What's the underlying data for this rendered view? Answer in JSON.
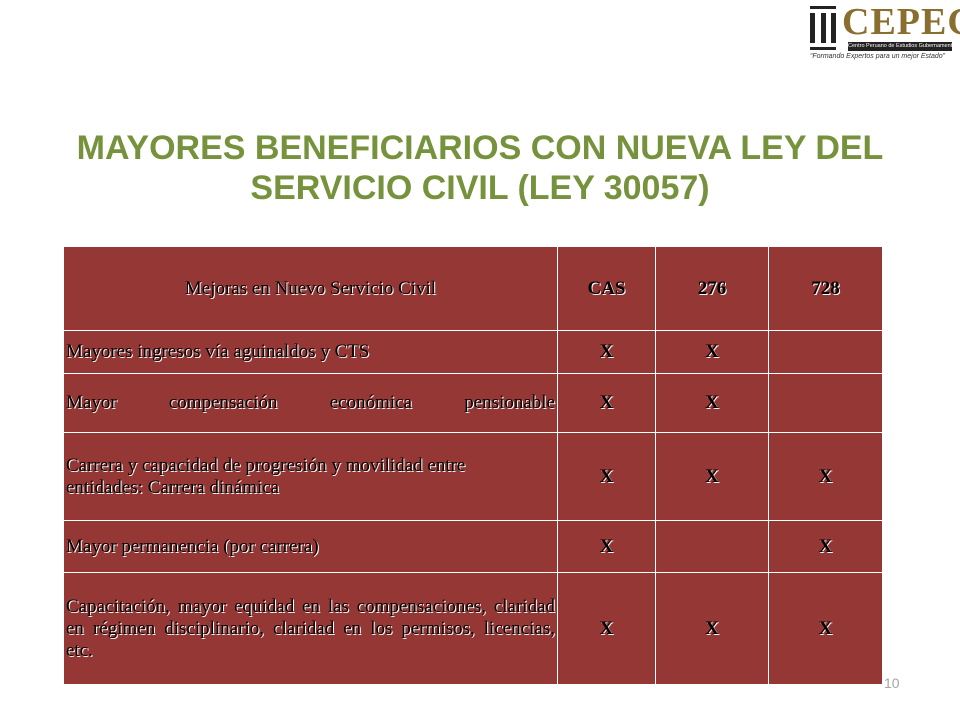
{
  "logo": {
    "name": "CEPEG",
    "subtitle": "Centro Peruano de Estudios Gubernamentales",
    "tagline": "“Formando Expertos para un mejor Estado”"
  },
  "title": "MAYORES BENEFICIARIOS CON NUEVA LEY DEL SERVICIO CIVIL (LEY 30057)",
  "table": {
    "headers": [
      "Mejoras en Nuevo Servicio Civil",
      "CAS",
      "276",
      "728"
    ],
    "rows": [
      {
        "label": "Mayores ingresos vía aguinaldos  y CTS",
        "marks": [
          "X",
          "X",
          ""
        ]
      },
      {
        "label": "Mayor compensación económica pensionable",
        "marks": [
          "X",
          "X",
          ""
        ]
      },
      {
        "label": "Carrera y capacidad de progresión y movilidad entre entidades: Carrera dinámica",
        "marks": [
          "X",
          "X",
          "X"
        ]
      },
      {
        "label": "Mayor permanencia (por carrera)",
        "marks": [
          "X",
          "",
          "X"
        ]
      },
      {
        "label": "Capacitación, mayor equidad en las compensaciones, claridad en régimen disciplinario, claridad en los permisos, licencias, etc.",
        "marks": [
          "X",
          "X",
          "X"
        ]
      }
    ]
  },
  "page_number": "10",
  "colors": {
    "title": "#76923c",
    "table_fill": "#953735",
    "logo_brand": "#8a6e2f"
  }
}
